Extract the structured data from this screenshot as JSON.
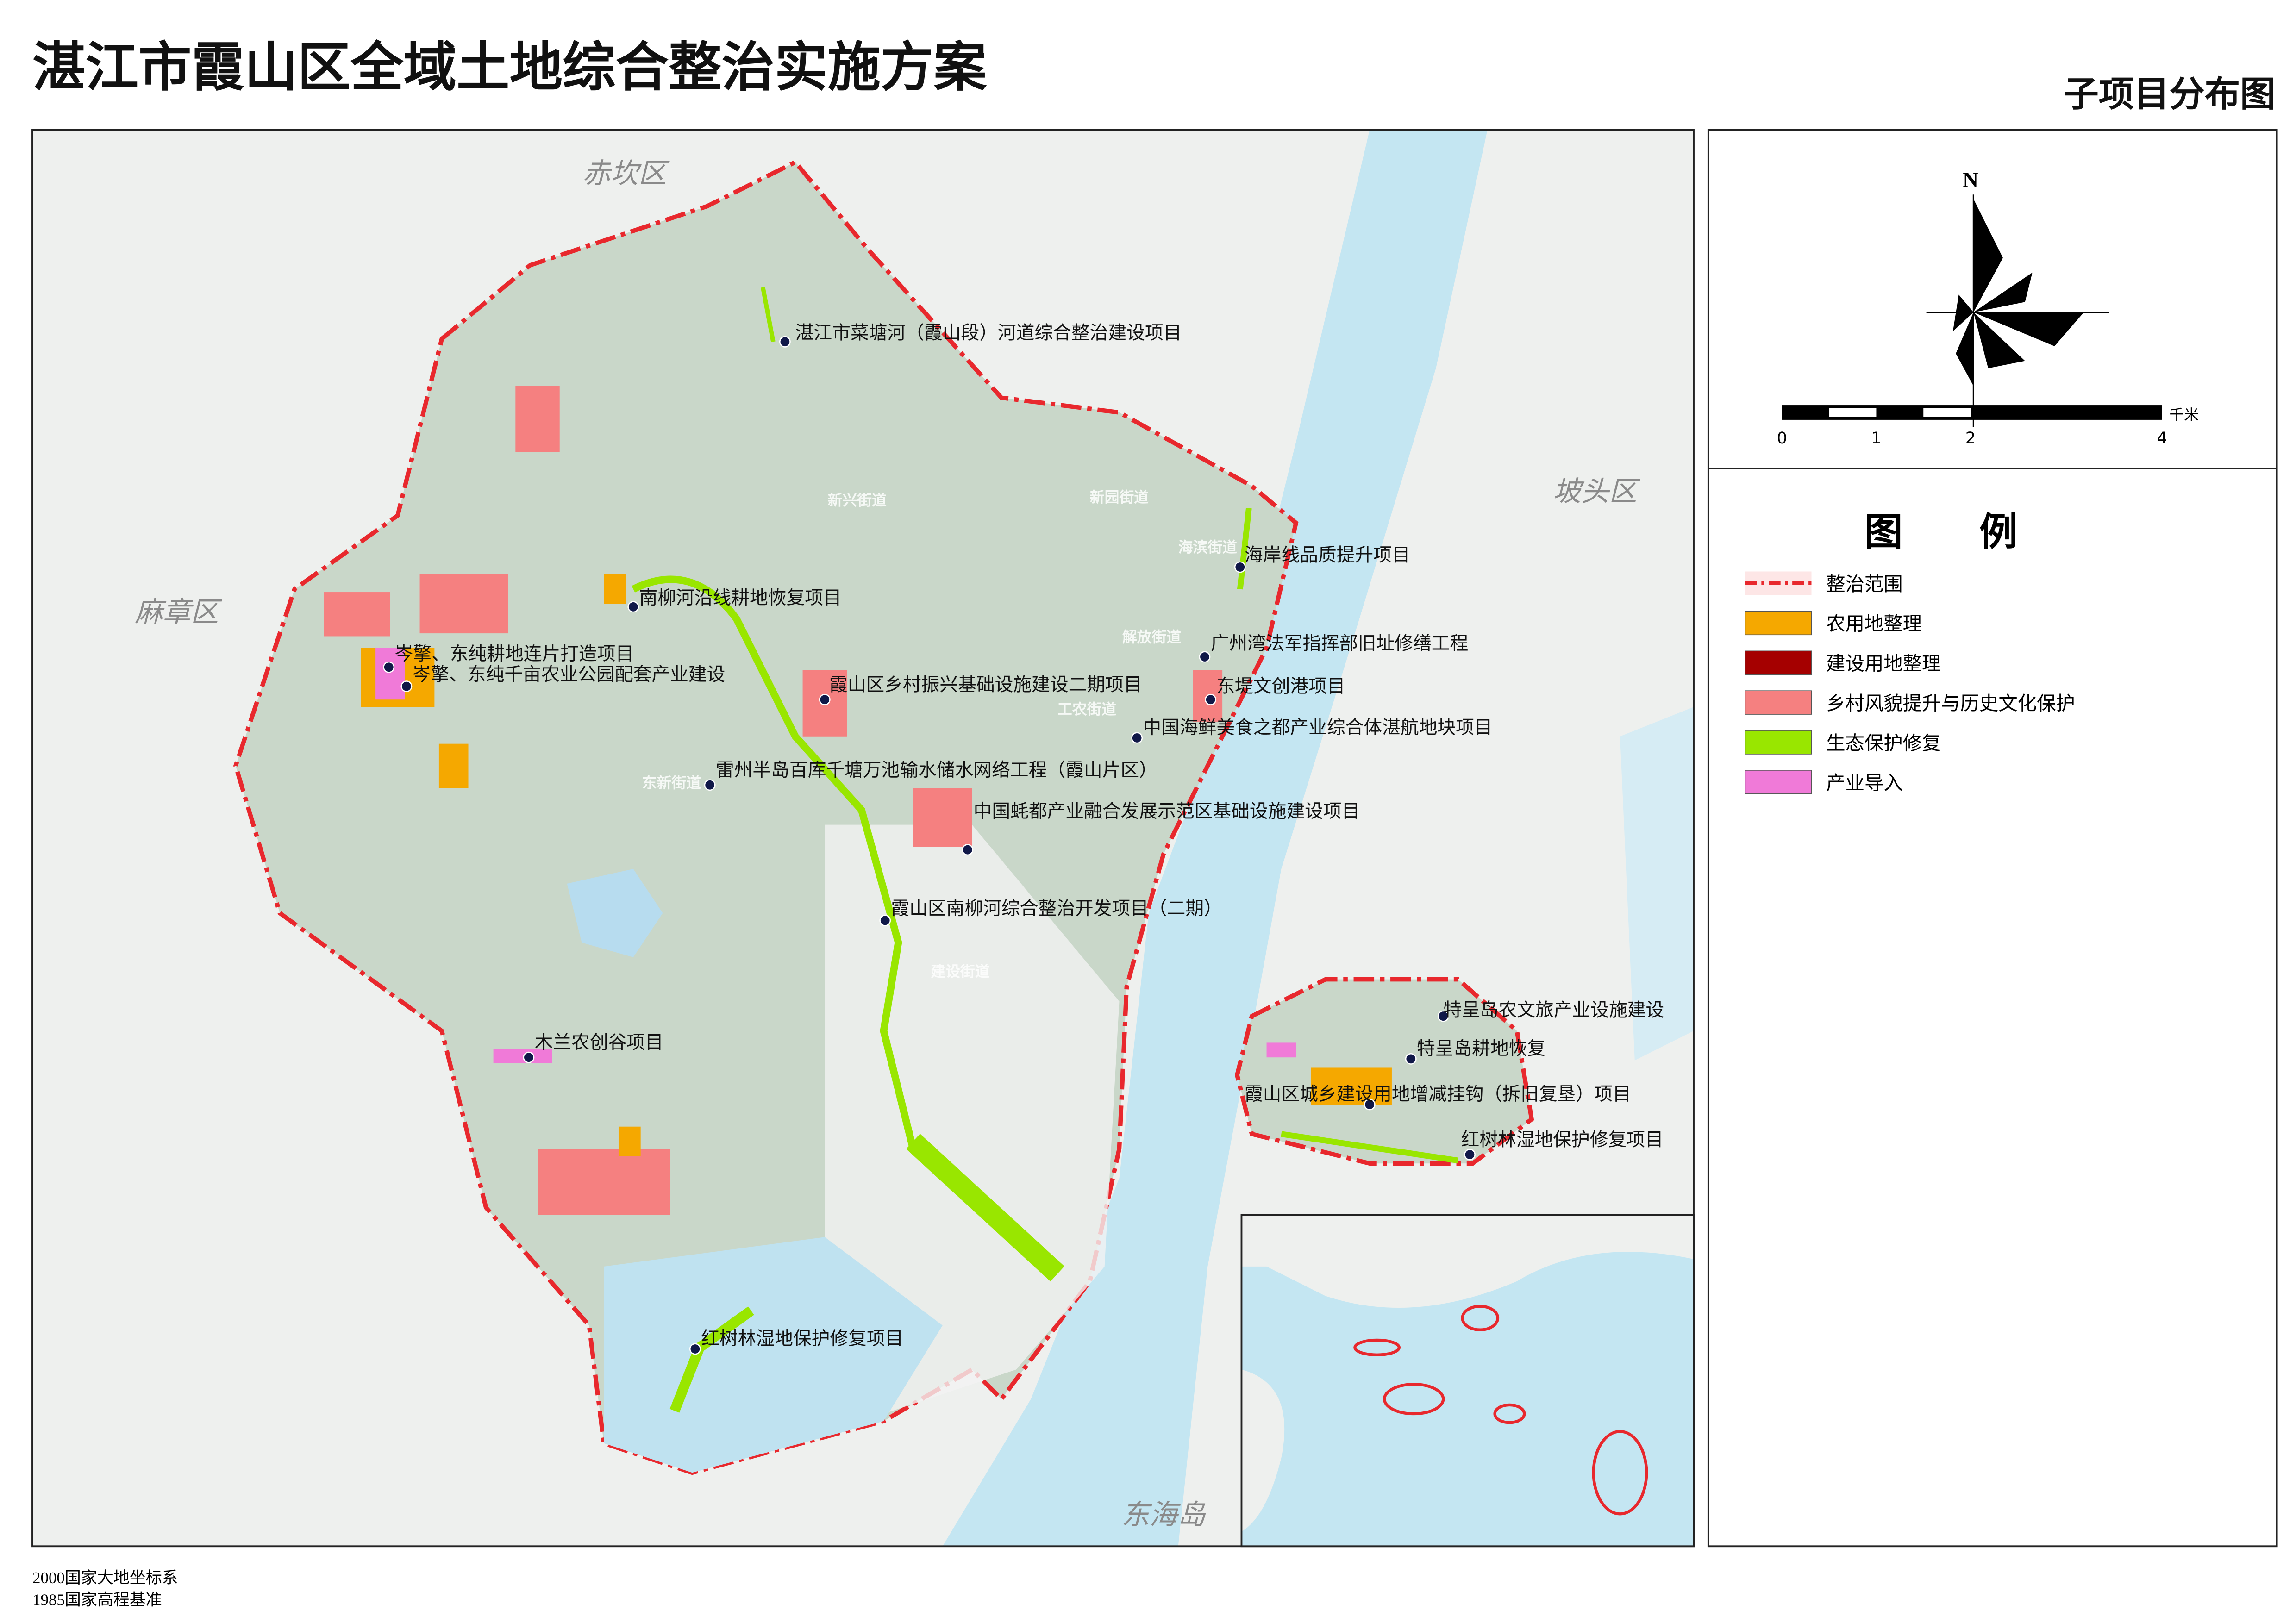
{
  "header": {
    "title": "湛江市霞山区全域土地综合整治实施方案",
    "subtitle": "子项目分布图"
  },
  "districts": [
    "赤坎区",
    "麻章区",
    "坡头区",
    "东海岛"
  ],
  "streets": [
    "新兴街道",
    "新园街道",
    "海滨街道",
    "解放街道",
    "工农街道",
    "建设街道",
    "东新街道"
  ],
  "projects": [
    "湛江市菜塘河（霞山段）河道综合整治建设项目",
    "海岸线品质提升项目",
    "南柳河沿线耕地恢复项目",
    "广州湾法军指挥部旧址修缮工程",
    "岑擎、东纯耕地连片打造项目",
    "岑擎、东纯千亩农业公园配套产业建设",
    "霞山区乡村振兴基础设施建设二期项目",
    "东堤文创港项目",
    "中国海鲜美食之都产业综合体湛航地块项目",
    "雷州半岛百库千塘万池输水储水网络工程（霞山片区）",
    "中国蚝都产业融合发展示范区基础设施建设项目",
    "霞山区南柳河综合整治开发项目（二期）",
    "特呈岛农文旅产业设施建设",
    "木兰农创谷项目",
    "特呈岛耕地恢复",
    "霞山区城乡建设用地增减挂钩（拆旧复垦）项目",
    "红树林湿地保护修复项目",
    "红树林湿地保护修复项目"
  ],
  "compass": {
    "north": "N"
  },
  "scale": {
    "labels": [
      "0",
      "1",
      "2",
      "4"
    ],
    "unit": "千米"
  },
  "legend": {
    "title": "图　　例",
    "items": [
      {
        "label": "整治范围",
        "color": "#e8282d"
      },
      {
        "label": "农用地整理",
        "color": "#f5a800"
      },
      {
        "label": "建设用地整理",
        "color": "#a50000"
      },
      {
        "label": "乡村风貌提升与历史文化保护",
        "color": "#f58080"
      },
      {
        "label": "生态保护修复",
        "color": "#99e600"
      },
      {
        "label": "产业导入",
        "color": "#f07ad8"
      }
    ]
  },
  "footer": {
    "lines": [
      "2000国家大地坐标系",
      "1985国家高程基准"
    ]
  }
}
